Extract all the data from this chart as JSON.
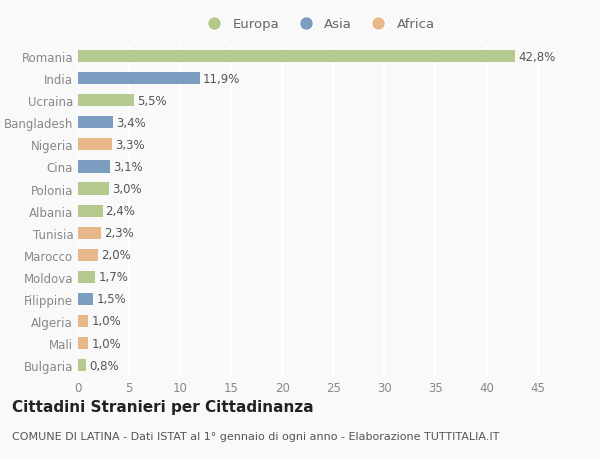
{
  "categories": [
    "Bulgaria",
    "Mali",
    "Algeria",
    "Filippine",
    "Moldova",
    "Marocco",
    "Tunisia",
    "Albania",
    "Polonia",
    "Cina",
    "Nigeria",
    "Bangladesh",
    "Ucraina",
    "India",
    "Romania"
  ],
  "values": [
    0.8,
    1.0,
    1.0,
    1.5,
    1.7,
    2.0,
    2.3,
    2.4,
    3.0,
    3.1,
    3.3,
    3.4,
    5.5,
    11.9,
    42.8
  ],
  "labels": [
    "0,8%",
    "1,0%",
    "1,0%",
    "1,5%",
    "1,7%",
    "2,0%",
    "2,3%",
    "2,4%",
    "3,0%",
    "3,1%",
    "3,3%",
    "3,4%",
    "5,5%",
    "11,9%",
    "42,8%"
  ],
  "continents": [
    "Europa",
    "Africa",
    "Africa",
    "Asia",
    "Europa",
    "Africa",
    "Africa",
    "Europa",
    "Europa",
    "Asia",
    "Africa",
    "Asia",
    "Europa",
    "Asia",
    "Europa"
  ],
  "colors": {
    "Europa": "#b5c98e",
    "Asia": "#7b9dbf",
    "Africa": "#e8b88a"
  },
  "xlim": [
    0,
    47
  ],
  "xticks": [
    0,
    5,
    10,
    15,
    20,
    25,
    30,
    35,
    40,
    45
  ],
  "title": "Cittadini Stranieri per Cittadinanza",
  "subtitle": "COMUNE DI LATINA - Dati ISTAT al 1° gennaio di ogni anno - Elaborazione TUTTITALIA.IT",
  "background_color": "#f9f9f9",
  "grid_color": "#ffffff",
  "bar_height": 0.55,
  "label_fontsize": 8.5,
  "tick_fontsize": 8.5,
  "title_fontsize": 11,
  "subtitle_fontsize": 8
}
